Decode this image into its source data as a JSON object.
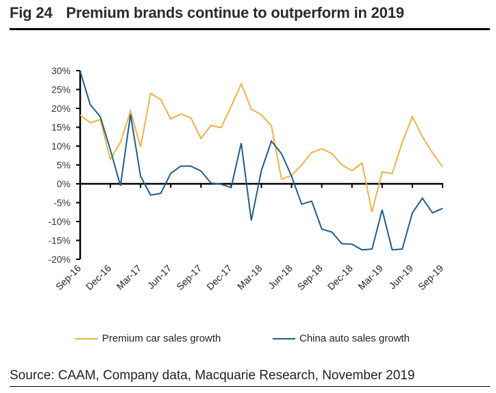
{
  "figure": {
    "number": "Fig 24",
    "title": "Premium brands continue to outperform in 2019",
    "source": "Source: CAAM, Company data, Macquarie Research, November 2019"
  },
  "chart_data": {
    "type": "line",
    "title": "Premium brands continue to outperform in 2019",
    "xlabel": "",
    "ylabel": "",
    "ylim": [
      -20,
      30
    ],
    "y_ticks": [
      30,
      25,
      20,
      15,
      10,
      5,
      0,
      -5,
      -10,
      -15,
      -20
    ],
    "y_tick_labels": [
      "30%",
      "25%",
      "20%",
      "15%",
      "10%",
      "5%",
      "0%",
      "-5%",
      "-10%",
      "-15%",
      "-20%"
    ],
    "x": [
      "Sep-16",
      "Oct-16",
      "Nov-16",
      "Dec-16",
      "Jan-17",
      "Feb-17",
      "Mar-17",
      "Apr-17",
      "May-17",
      "Jun-17",
      "Jul-17",
      "Aug-17",
      "Sep-17",
      "Oct-17",
      "Nov-17",
      "Dec-17",
      "Jan-18",
      "Feb-18",
      "Mar-18",
      "Apr-18",
      "May-18",
      "Jun-18",
      "Jul-18",
      "Aug-18",
      "Sep-18",
      "Oct-18",
      "Nov-18",
      "Dec-18",
      "Jan-19",
      "Feb-19",
      "Mar-19",
      "Apr-19",
      "May-19",
      "Jun-19",
      "Jul-19",
      "Aug-19",
      "Sep-19"
    ],
    "x_tick_labels": [
      "Sep-16",
      "Dec-16",
      "Mar-17",
      "Jun-17",
      "Sep-17",
      "Dec-17",
      "Mar-18",
      "Jun-18",
      "Sep-18",
      "Dec-18",
      "Mar-19",
      "Jun-19",
      "Sep-19"
    ],
    "x_tick_every": 3,
    "grid": false,
    "legend_position": "bottom-center",
    "series": [
      {
        "name": "Premium car sales growth",
        "color": "#F4B042",
        "values": [
          18.2,
          16.2,
          17.0,
          6.5,
          11.0,
          19.3,
          9.8,
          24.0,
          22.3,
          17.2,
          18.5,
          17.5,
          12.0,
          15.5,
          14.9,
          20.5,
          26.5,
          19.8,
          18.3,
          15.4,
          1.3,
          2.2,
          5.0,
          8.3,
          9.3,
          8.0,
          5.0,
          3.5,
          5.5,
          -7.5,
          3.2,
          2.7,
          11.0,
          17.8,
          12.5,
          8.2,
          4.5
        ]
      },
      {
        "name": "China auto sales growth",
        "color": "#1D5C8F",
        "values": [
          29.8,
          21.0,
          17.8,
          9.0,
          -0.5,
          18.4,
          2.0,
          -3.0,
          -2.5,
          2.8,
          4.7,
          4.7,
          3.4,
          0.2,
          -0.1,
          -1.0,
          10.8,
          -9.7,
          3.5,
          11.3,
          8.0,
          2.0,
          -5.4,
          -4.6,
          -12.0,
          -12.8,
          -15.9,
          -16.0,
          -17.5,
          -17.3,
          -6.9,
          -17.5,
          -17.3,
          -7.7,
          -3.8,
          -7.7,
          -6.5
        ]
      }
    ]
  }
}
